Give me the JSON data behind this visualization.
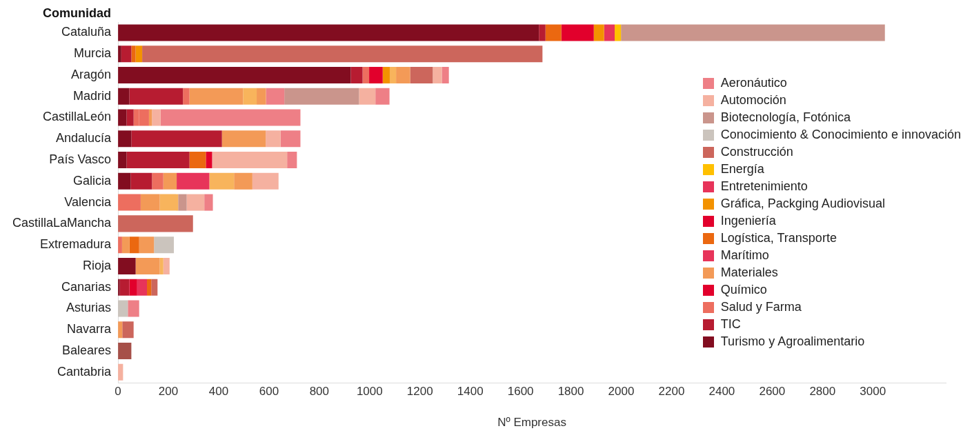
{
  "chart_data": {
    "type": "bar",
    "orientation": "horizontal",
    "stacked": true,
    "ylabel": "Comunidad",
    "xlabel": "Nº Empresas",
    "categories": [
      "Cataluña",
      "Murcia",
      "Aragón",
      "Madrid",
      "CastillaLeón",
      "Andalucía",
      "País Vasco",
      "Galicia",
      "Valencia",
      "CastillaLaMancha",
      "Extremadura",
      "Rioja",
      "Canarias",
      "Asturias",
      "Navarra",
      "Baleares",
      "Cantabria"
    ],
    "xlim": [
      0,
      3290
    ],
    "xticks": [
      0,
      200,
      400,
      600,
      800,
      1000,
      1200,
      1400,
      1600,
      1800,
      2000,
      2200,
      2400,
      2600,
      2800,
      3000
    ],
    "grid": false,
    "legend": "right",
    "series": [
      {
        "name": "Turismo y Agroalimentario",
        "color": "#820d20",
        "values": [
          1673,
          13,
          925,
          45,
          34,
          53,
          34,
          50,
          null,
          null,
          null,
          70,
          7,
          null,
          null,
          null,
          null
        ]
      },
      {
        "name": "TIC",
        "color": "#b71c31",
        "values": [
          26,
          40,
          47,
          213,
          28,
          360,
          250,
          85,
          null,
          null,
          null,
          null,
          38,
          null,
          null,
          null,
          null
        ]
      },
      {
        "name": "Salud y Farma",
        "color": "#ed6e5f",
        "values": [
          null,
          null,
          26,
          26,
          22,
          null,
          null,
          45,
          90,
          null,
          16,
          null,
          null,
          null,
          null,
          null,
          null
        ]
      },
      {
        "color": "#ed6e5f",
        "values": [
          null,
          null,
          null,
          null,
          39,
          null,
          null,
          null,
          null,
          null,
          null,
          null,
          null,
          null,
          null,
          null,
          null
        ]
      },
      {
        "name": "Químico",
        "color": "#e2002c",
        "values": [
          null,
          null,
          null,
          null,
          null,
          null,
          null,
          null,
          null,
          null,
          null,
          null,
          31,
          null,
          null,
          null,
          null
        ]
      },
      {
        "name": "Materiales",
        "color": "#f39a57",
        "values": [
          null,
          null,
          null,
          213,
          12,
          174,
          null,
          53,
          76,
          null,
          29,
          96,
          null,
          null,
          17,
          null,
          null
        ]
      },
      {
        "name": "Marítimo",
        "color": "#e7345a",
        "values": [
          null,
          null,
          null,
          null,
          null,
          null,
          null,
          130,
          null,
          null,
          null,
          null,
          39,
          null,
          null,
          null,
          null
        ]
      },
      {
        "name": "Logística, Transporte",
        "color": "#eb6810",
        "values": [
          63,
          17,
          null,
          null,
          null,
          null,
          65,
          null,
          null,
          null,
          39,
          null,
          17,
          null,
          null,
          null,
          null
        ]
      },
      {
        "name": "Ingeniería",
        "color": "#e2002c",
        "values": [
          129,
          null,
          54,
          null,
          null,
          null,
          25,
          null,
          null,
          null,
          null,
          null,
          null,
          null,
          null,
          null,
          null
        ]
      },
      {
        "name": "Gráfica, Packging Audiovisual",
        "color": "#f39200",
        "values": [
          41,
          26,
          28,
          null,
          null,
          null,
          null,
          null,
          null,
          null,
          null,
          null,
          null,
          null,
          null,
          null,
          null
        ]
      },
      {
        "name": "Entretenimiento",
        "color": "#e7345a",
        "values": [
          42,
          null,
          null,
          null,
          null,
          null,
          null,
          null,
          null,
          null,
          null,
          null,
          null,
          null,
          null,
          null,
          null
        ]
      },
      {
        "name": "Energía",
        "color": "#ffc000",
        "values": [
          25,
          null,
          null,
          null,
          null,
          null,
          null,
          null,
          null,
          null,
          null,
          null,
          null,
          null,
          null,
          null,
          null
        ]
      },
      {
        "color": "#f8b45c",
        "values": [
          null,
          null,
          25,
          54,
          null,
          null,
          null,
          98,
          73,
          null,
          null,
          14,
          null,
          null,
          null,
          null,
          null
        ]
      },
      {
        "color": "#f39a57",
        "values": [
          null,
          null,
          56,
          37,
          null,
          null,
          null,
          73,
          null,
          null,
          59,
          null,
          null,
          null,
          null,
          null,
          null
        ]
      },
      {
        "color": "#ee7f86",
        "values": [
          null,
          null,
          null,
          73,
          null,
          null,
          null,
          null,
          null,
          null,
          null,
          null,
          null,
          null,
          null,
          null,
          null
        ]
      },
      {
        "name": "Construcción",
        "color": "#cc665c",
        "values": [
          null,
          1591,
          90,
          null,
          null,
          null,
          null,
          null,
          null,
          298,
          null,
          null,
          25,
          null,
          45,
          null,
          null
        ]
      },
      {
        "name": "Conocimiento & Conocimiento e innovación",
        "color": "#cbc4bd",
        "values": [
          null,
          null,
          null,
          null,
          null,
          null,
          null,
          null,
          null,
          null,
          79,
          null,
          null,
          39,
          null,
          null,
          null
        ]
      },
      {
        "name": "Biotecnología, Fotónica",
        "color": "#ca958c",
        "values": [
          1049,
          null,
          null,
          297,
          null,
          null,
          null,
          null,
          34,
          null,
          null,
          null,
          null,
          null,
          null,
          null,
          null
        ]
      },
      {
        "name": "Automoción",
        "color": "#f5b1a0",
        "values": [
          null,
          null,
          36,
          65,
          34,
          59,
          298,
          104,
          70,
          null,
          null,
          25,
          null,
          null,
          null,
          null,
          20
        ]
      },
      {
        "name": "Aeronáutico",
        "color": "#ee7f86",
        "values": [
          null,
          null,
          28,
          56,
          556,
          79,
          39,
          null,
          34,
          null,
          null,
          null,
          null,
          45,
          null,
          null,
          null
        ]
      },
      {
        "color": "#a65049",
        "values": [
          null,
          null,
          null,
          null,
          null,
          null,
          null,
          null,
          null,
          null,
          null,
          null,
          null,
          null,
          null,
          53,
          null
        ]
      }
    ]
  }
}
